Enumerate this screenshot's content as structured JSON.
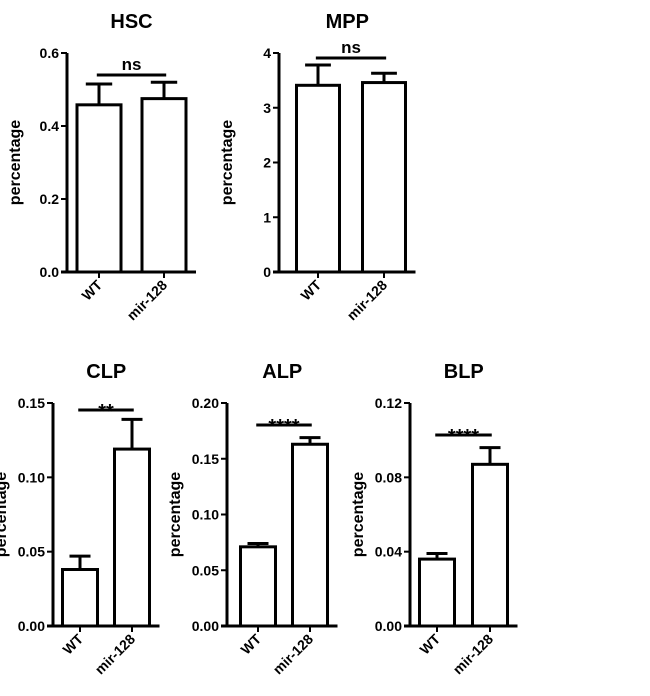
{
  "chart_data": [
    {
      "type": "bar",
      "title": "HSC",
      "ylabel": "percentage",
      "categories": [
        "WT",
        "mir-128"
      ],
      "values": [
        0.458,
        0.475
      ],
      "errors": [
        0.057,
        0.045
      ],
      "ylim": [
        0,
        0.6
      ],
      "yticks": [
        0.0,
        0.2,
        0.4,
        0.6
      ],
      "tick_labels": [
        "0.0",
        "0.2",
        "0.4",
        "0.6"
      ],
      "significance": "ns"
    },
    {
      "type": "bar",
      "title": "MPP",
      "ylabel": "percentage",
      "categories": [
        "WT",
        "mir-128"
      ],
      "values": [
        3.41,
        3.46
      ],
      "errors": [
        0.37,
        0.17
      ],
      "ylim": [
        0,
        4
      ],
      "yticks": [
        0,
        1,
        2,
        3,
        4
      ],
      "tick_labels": [
        "0",
        "1",
        "2",
        "3",
        "4"
      ],
      "significance": "ns"
    },
    {
      "type": "bar",
      "title": "CLP",
      "ylabel": "percentage",
      "categories": [
        "WT",
        "mir-128"
      ],
      "values": [
        0.038,
        0.119
      ],
      "errors": [
        0.009,
        0.02
      ],
      "ylim": [
        0,
        0.15
      ],
      "yticks": [
        0,
        0.05,
        0.1,
        0.15
      ],
      "tick_labels": [
        "0.00",
        "0.05",
        "0.10",
        "0.15"
      ],
      "significance": "**"
    },
    {
      "type": "bar",
      "title": "ALP",
      "ylabel": "percentage",
      "categories": [
        "WT",
        "mir-128"
      ],
      "values": [
        0.071,
        0.163
      ],
      "errors": [
        0.003,
        0.006
      ],
      "ylim": [
        0,
        0.2
      ],
      "yticks": [
        0,
        0.05,
        0.1,
        0.15,
        0.2
      ],
      "tick_labels": [
        "0.00",
        "0.05",
        "0.10",
        "0.15",
        "0.20"
      ],
      "significance": "****"
    },
    {
      "type": "bar",
      "title": "BLP",
      "ylabel": "percentage",
      "categories": [
        "WT",
        "mir-128"
      ],
      "values": [
        0.036,
        0.087
      ],
      "errors": [
        0.003,
        0.009
      ],
      "ylim": [
        0,
        0.12
      ],
      "yticks": [
        0,
        0.04,
        0.08,
        0.12
      ],
      "tick_labels": [
        "0.00",
        "0.04",
        "0.08",
        "0.12"
      ],
      "significance": "****"
    }
  ]
}
